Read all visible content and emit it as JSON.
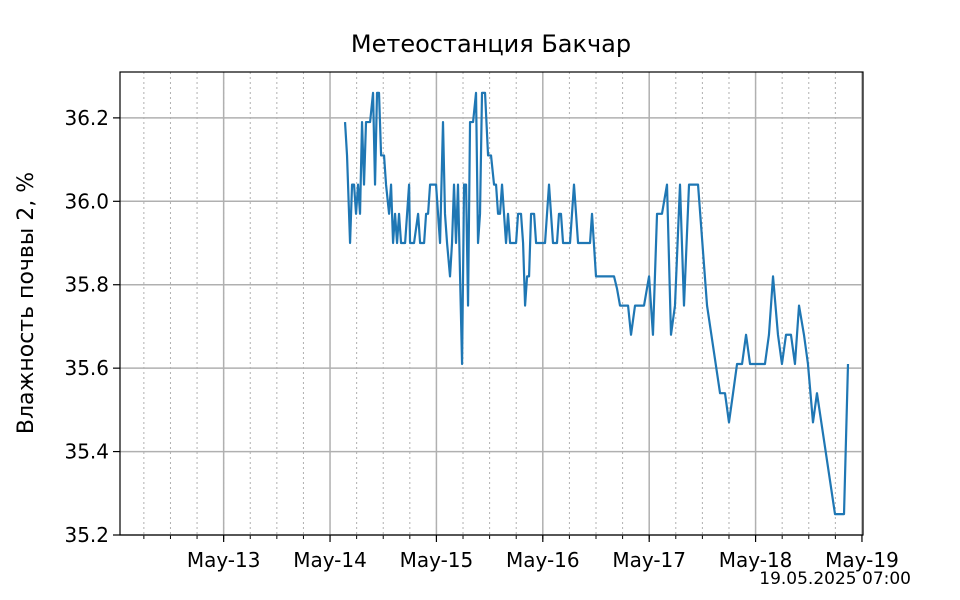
{
  "chart_data": {
    "type": "line",
    "title": "Метеостанция Бакчар",
    "ylabel": "Влажность почвы 2, %",
    "annotation": "19.05.2025 07:00",
    "color": "#1f77b4",
    "grid": true,
    "x_minor_step_hours": 6,
    "xlim": [
      "05-12T00:37",
      "05-19T00:14"
    ],
    "xticks": [
      {
        "value": "05-13T00:00",
        "label": "May-13"
      },
      {
        "value": "05-14T00:00",
        "label": "May-14"
      },
      {
        "value": "05-15T00:00",
        "label": "May-15"
      },
      {
        "value": "05-16T00:00",
        "label": "May-16"
      },
      {
        "value": "05-17T00:00",
        "label": "May-17"
      },
      {
        "value": "05-18T00:00",
        "label": "May-18"
      },
      {
        "value": "05-19T00:00",
        "label": "May-19"
      }
    ],
    "ylim": [
      35.2,
      36.31
    ],
    "yticks": [
      35.2,
      35.4,
      35.6,
      35.8,
      {
        "value": 36,
        "label": "36.0"
      },
      36.2
    ],
    "x": [
      "05-14T03:23",
      "05-14T03:50",
      "05-14T04:31",
      "05-14T04:58",
      "05-14T05:25",
      "05-14T05:52",
      "05-14T06:19",
      "05-14T06:46",
      "05-14T07:13",
      "05-14T07:40",
      "05-14T08:07",
      "05-14T09:02",
      "05-14T09:42",
      "05-14T10:09",
      "05-14T10:36",
      "05-14T11:03",
      "05-14T11:31",
      "05-14T12:11",
      "05-14T12:38",
      "05-14T13:19",
      "05-14T13:46",
      "05-14T14:13",
      "05-14T14:40",
      "05-14T15:07",
      "05-14T15:34",
      "05-14T16:01",
      "05-14T16:28",
      "05-14T16:56",
      "05-14T17:50",
      "05-14T18:03",
      "05-14T18:57",
      "05-14T19:52",
      "05-14T20:19",
      "05-14T21:13",
      "05-14T21:40",
      "05-14T22:07",
      "05-14T22:34",
      "05-14T23:55",
      "05-15T00:22",
      "05-15T00:49",
      "05-15T01:29",
      "05-15T01:56",
      "05-15T02:24",
      "05-15T03:04",
      "05-15T03:31",
      "05-15T03:58",
      "05-15T04:25",
      "05-15T04:52",
      "05-15T05:20",
      "05-15T05:47",
      "05-15T06:14",
      "05-15T06:41",
      "05-15T07:08",
      "05-15T07:35",
      "05-15T08:16",
      "05-15T08:56",
      "05-15T09:23",
      "05-15T09:50",
      "05-15T10:17",
      "05-15T10:58",
      "05-15T11:39",
      "05-15T12:19",
      "05-15T13:00",
      "05-15T13:27",
      "05-15T13:54",
      "05-15T14:21",
      "05-15T14:48",
      "05-15T15:15",
      "05-15T15:42",
      "05-15T16:09",
      "05-15T16:37",
      "05-15T17:31",
      "05-15T17:58",
      "05-15T18:25",
      "05-15T19:05",
      "05-15T19:33",
      "05-15T20:00",
      "05-15T20:27",
      "05-15T20:54",
      "05-15T21:21",
      "05-15T22:02",
      "05-15T22:29",
      "05-16T00:03",
      "05-16T00:30",
      "05-16T00:57",
      "05-16T01:24",
      "05-16T01:51",
      "05-16T02:18",
      "05-16T03:12",
      "05-16T03:39",
      "05-16T04:06",
      "05-16T04:34",
      "05-16T06:08",
      "05-16T07:02",
      "05-16T07:30",
      "05-16T07:57",
      "05-16T09:45",
      "05-16T10:39",
      "05-16T11:06",
      "05-16T12:00",
      "05-16T16:04",
      "05-16T16:45",
      "05-16T17:25",
      "05-16T18:47",
      "05-16T19:14",
      "05-16T19:54",
      "05-16T20:48",
      "05-16T22:50",
      "05-16T23:58",
      "05-17T00:51",
      "05-17T01:46",
      "05-17T02:53",
      "05-17T04:01",
      "05-17T04:55",
      "05-17T05:49",
      "05-17T06:57",
      "05-17T07:51",
      "05-17T08:59",
      "05-17T11:01",
      "05-17T13:03",
      "05-17T15:59",
      "05-17T17:06",
      "05-17T18:00",
      "05-17T18:55",
      "05-17T19:49",
      "05-17T20:57",
      "05-17T21:51",
      "05-17T22:45",
      "05-18T02:07",
      "05-18T03:01",
      "05-18T03:56",
      "05-18T05:03",
      "05-18T05:57",
      "05-18T06:52",
      "05-18T07:59",
      "05-18T08:53",
      "05-18T09:48",
      "05-18T10:55",
      "05-18T11:49",
      "05-18T12:57",
      "05-18T13:51",
      "05-18T17:55",
      "05-18T19:57",
      "05-18T20:51"
    ],
    "values": [
      36.19,
      36.11,
      35.9,
      36.04,
      36.04,
      35.97,
      36.04,
      35.97,
      36.19,
      36.04,
      36.19,
      36.19,
      36.26,
      36.04,
      36.26,
      36.26,
      36.11,
      36.11,
      36.04,
      35.97,
      36.04,
      35.9,
      35.97,
      35.9,
      35.97,
      35.9,
      35.9,
      35.9,
      36.04,
      35.9,
      35.9,
      35.97,
      35.9,
      35.9,
      35.97,
      35.97,
      36.04,
      36.04,
      35.97,
      35.9,
      36.19,
      35.97,
      35.9,
      35.82,
      35.9,
      36.04,
      35.9,
      36.04,
      35.82,
      35.61,
      36.04,
      36.04,
      35.75,
      36.19,
      36.19,
      36.26,
      35.9,
      35.97,
      36.26,
      36.26,
      36.11,
      36.11,
      36.04,
      36.04,
      35.97,
      35.97,
      36.04,
      35.97,
      35.9,
      35.97,
      35.9,
      35.9,
      35.9,
      35.97,
      35.97,
      35.9,
      35.75,
      35.82,
      35.82,
      35.97,
      35.97,
      35.9,
      35.9,
      35.9,
      35.97,
      36.04,
      35.97,
      35.9,
      35.9,
      35.97,
      35.97,
      35.9,
      35.9,
      36.04,
      35.97,
      35.9,
      35.9,
      35.9,
      35.97,
      35.82,
      35.82,
      35.79,
      35.75,
      35.75,
      35.75,
      35.68,
      35.75,
      35.75,
      35.82,
      35.68,
      35.97,
      35.97,
      36.04,
      35.68,
      35.75,
      36.04,
      35.75,
      36.04,
      36.04,
      35.75,
      35.54,
      35.54,
      35.47,
      35.54,
      35.61,
      35.61,
      35.68,
      35.61,
      35.61,
      35.68,
      35.82,
      35.68,
      35.61,
      35.68,
      35.68,
      35.61,
      35.75,
      35.68,
      35.61,
      35.47,
      35.54,
      35.25,
      35.25,
      35.61
    ]
  }
}
